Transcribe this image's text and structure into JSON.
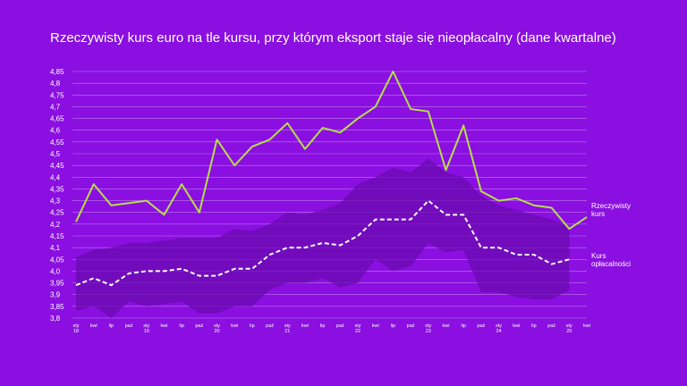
{
  "chart_data": {
    "type": "line",
    "title": "Rzeczywisty kurs euro na tle kursu, przy którym eksport staje się nieopłacalny (dane kwartalne)",
    "xlabel": "",
    "ylabel": "",
    "ylim": [
      3.8,
      4.85
    ],
    "yticks": [
      "3,8",
      "3,85",
      "3,9",
      "3,95",
      "4,0",
      "4,05",
      "4,1",
      "4,15",
      "4,2",
      "4,25",
      "4,3",
      "4,35",
      "4,4",
      "4,45",
      "4,5",
      "4,55",
      "4,6",
      "4,65",
      "4,7",
      "4,75",
      "4,8",
      "4,85"
    ],
    "categories": [
      "sty 18",
      "kwi",
      "lip",
      "paź",
      "sty 19",
      "kwi",
      "lip",
      "paź",
      "sty 20",
      "kwi",
      "lip",
      "paź",
      "sty 21",
      "kwi",
      "lip",
      "paź",
      "sty 22",
      "kwi",
      "lip",
      "paź",
      "sty 23",
      "kwi",
      "lip",
      "paź",
      "sty 24",
      "kwi",
      "lip",
      "paź",
      "sty 25",
      "kwi"
    ],
    "grid": true,
    "legend_placement": "right",
    "series": [
      {
        "name": "Rzeczywisty kurs",
        "color": "#b5df4a",
        "style": "solid",
        "values": [
          4.21,
          4.37,
          4.28,
          4.29,
          4.3,
          4.24,
          4.37,
          4.25,
          4.56,
          4.45,
          4.53,
          4.56,
          4.63,
          4.52,
          4.61,
          4.59,
          4.65,
          4.7,
          4.85,
          4.69,
          4.68,
          4.43,
          4.62,
          4.34,
          4.3,
          4.31,
          4.28,
          4.27,
          4.18,
          4.23
        ]
      },
      {
        "name": "Kurs opłacalności",
        "color": "#ffffff",
        "style": "dashed",
        "values": [
          3.94,
          3.97,
          3.94,
          3.99,
          4.0,
          4.0,
          4.01,
          3.98,
          3.98,
          4.01,
          4.01,
          4.07,
          4.1,
          4.1,
          4.12,
          4.11,
          4.15,
          4.22,
          4.22,
          4.22,
          4.3,
          4.24,
          4.24,
          4.1,
          4.1,
          4.07,
          4.07,
          4.03,
          4.05,
          null
        ]
      }
    ],
    "band": {
      "color": "#6a0bb0",
      "upper": [
        4.06,
        4.09,
        4.1,
        4.12,
        4.12,
        4.13,
        4.14,
        4.14,
        4.14,
        4.18,
        4.17,
        4.2,
        4.25,
        4.24,
        4.26,
        4.29,
        4.37,
        4.4,
        4.44,
        4.42,
        4.48,
        4.42,
        4.4,
        4.32,
        4.28,
        4.26,
        4.24,
        4.22,
        4.19,
        null
      ],
      "lower": [
        3.83,
        3.85,
        3.8,
        3.87,
        3.85,
        3.86,
        3.87,
        3.82,
        3.82,
        3.85,
        3.85,
        3.92,
        3.95,
        3.95,
        3.97,
        3.93,
        3.95,
        4.05,
        4.0,
        4.02,
        4.12,
        4.08,
        4.09,
        3.91,
        3.91,
        3.89,
        3.88,
        3.88,
        3.92,
        null
      ]
    }
  }
}
